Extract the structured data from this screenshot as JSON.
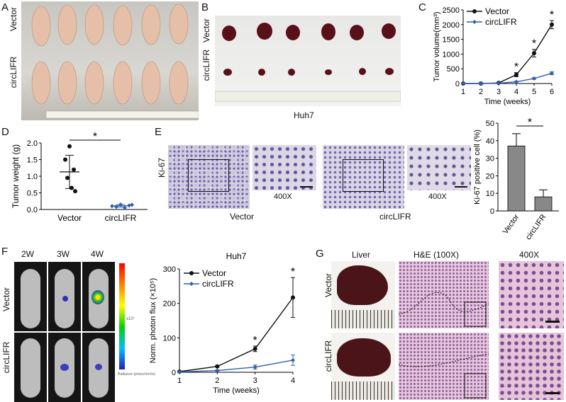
{
  "panels": {
    "A": {
      "letter": "A",
      "row_labels": [
        "Vector",
        "circLIFR"
      ]
    },
    "B": {
      "letter": "B",
      "row_labels": [
        "Vector",
        "circLIFR"
      ],
      "caption": "Huh7"
    },
    "C": {
      "letter": "C"
    },
    "D": {
      "letter": "D"
    },
    "E": {
      "letter": "E",
      "stain": "Ki-67",
      "mag": "400X",
      "group_labels": [
        "Vector",
        "circLIFR"
      ]
    },
    "F": {
      "letter": "F",
      "timepoints": [
        "2W",
        "3W",
        "4W"
      ],
      "row_labels": [
        "Vector",
        "circLIFR"
      ],
      "colorbar_unit": "Radiance (p/sec/cm²/sr)",
      "colorbar_ticks": [
        "x10⁷"
      ]
    },
    "G": {
      "letter": "G",
      "columns": [
        "Liver",
        "H&E (100X)",
        "400X"
      ],
      "row_labels": [
        "Vector",
        "circLIFR"
      ]
    }
  },
  "colors": {
    "vector": "#111111",
    "circlifr": "#3060b0",
    "bar": "#888888"
  },
  "chart_data": [
    {
      "id": "C",
      "type": "line",
      "title": "",
      "xlabel": "Time (weeks)",
      "ylabel": "Tumor volume(mm³)",
      "x": [
        1,
        2,
        3,
        4,
        5,
        6
      ],
      "ylim": [
        0,
        2500
      ],
      "yticks": [
        0,
        500,
        1000,
        1500,
        2000,
        2500
      ],
      "series": [
        {
          "name": "Vector",
          "values": [
            0,
            0,
            20,
            300,
            1030,
            2000
          ],
          "err": [
            0,
            0,
            10,
            70,
            130,
            140
          ]
        },
        {
          "name": "circLIFR",
          "values": [
            0,
            0,
            10,
            60,
            170,
            350
          ],
          "err": [
            0,
            0,
            5,
            15,
            30,
            50
          ]
        }
      ],
      "sig_marks": [
        "*",
        "*",
        "*"
      ],
      "sig_x": [
        4,
        5,
        6
      ]
    },
    {
      "id": "D",
      "type": "scatter",
      "title": "",
      "xlabel": "",
      "ylabel": "Tumor weight (g)",
      "categories": [
        "Vector",
        "circLIFR"
      ],
      "ylim": [
        0,
        2.0
      ],
      "yticks": [
        "0.0",
        "0.5",
        "1.0",
        "1.5",
        "2.0"
      ],
      "points": [
        [
          1.9,
          1.5,
          1.2,
          0.95,
          0.65,
          0.55
        ],
        [
          0.15,
          0.1,
          0.12,
          0.08,
          0.05,
          0.14
        ]
      ],
      "means": [
        1.13,
        0.11
      ],
      "sd": [
        0.5,
        0.04
      ],
      "sig": "*"
    },
    {
      "id": "E",
      "type": "bar",
      "title": "",
      "xlabel": "",
      "ylabel": "Ki-67 positive cell (%)",
      "categories": [
        "Vector",
        "circLIFR"
      ],
      "values": [
        37,
        8
      ],
      "err": [
        7,
        4
      ],
      "ylim": [
        0,
        50
      ],
      "yticks": [
        0,
        10,
        20,
        30,
        40,
        50
      ],
      "sig": "*"
    },
    {
      "id": "F",
      "type": "line",
      "title": "Huh7",
      "xlabel": "Time (weeks)",
      "ylabel": "Norm. photon flux (×10⁵)",
      "x": [
        1,
        2,
        3,
        4
      ],
      "ylim": [
        0,
        300
      ],
      "yticks": [
        0,
        100,
        200,
        300
      ],
      "series": [
        {
          "name": "Vector",
          "values": [
            2,
            17,
            68,
            217
          ],
          "err": [
            0,
            2,
            8,
            58
          ]
        },
        {
          "name": "circLIFR",
          "values": [
            1,
            5,
            15,
            35
          ],
          "err": [
            0,
            2,
            6,
            15
          ]
        }
      ],
      "sig_marks": [
        "*",
        "*"
      ],
      "sig_x": [
        3,
        4
      ]
    }
  ]
}
